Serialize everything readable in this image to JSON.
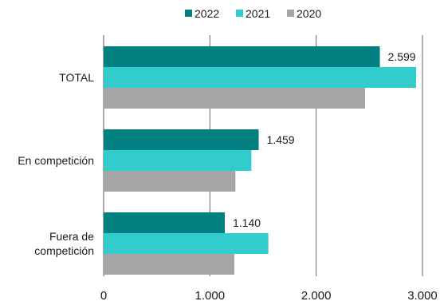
{
  "chart_data": {
    "type": "bar",
    "orientation": "horizontal",
    "categories": [
      "TOTAL",
      "En competición",
      "Fuera de competición"
    ],
    "series": [
      {
        "name": "2022",
        "color": "#008080",
        "values": [
          2599,
          1459,
          1140
        ]
      },
      {
        "name": "2021",
        "color": "#33cccc",
        "values": [
          2940,
          1390,
          1550
        ]
      },
      {
        "name": "2020",
        "color": "#a6a6a6",
        "values": [
          2460,
          1240,
          1230
        ]
      }
    ],
    "data_labels": {
      "series": "2022",
      "texts": [
        "2.599",
        "1.459",
        "1.140"
      ]
    },
    "xlim": [
      0,
      3000
    ],
    "x_ticks": [
      0,
      1000,
      2000,
      3000
    ],
    "x_tick_labels": [
      "0",
      "1.000",
      "2.000",
      "3.000"
    ],
    "grid": "vertical",
    "legend": "top-center"
  }
}
